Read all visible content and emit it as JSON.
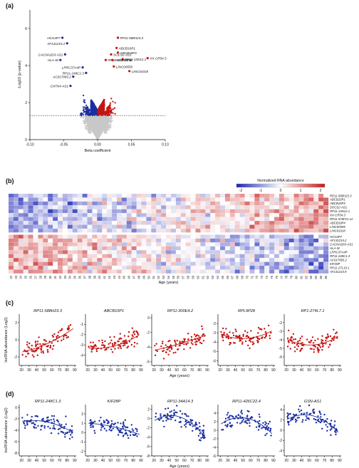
{
  "panel_labels": [
    "(a)",
    "(b)",
    "(c)",
    "(d)"
  ],
  "chart_data": [
    {
      "panel": "a",
      "type": "scatter",
      "xlabel": "Beta coefficient",
      "ylabel": "-Log10 (p-value)",
      "xlim": [
        -0.1,
        0.1
      ],
      "ylim": [
        0,
        7
      ],
      "xticks": [
        "-0.10",
        "-0.05",
        "0.00",
        "0.05",
        "0.10"
      ],
      "yticks": [
        "0",
        "2",
        "4",
        "6"
      ],
      "threshold_y": 1.3,
      "colors": {
        "negative": "#1a2fa0",
        "positive": "#c41414",
        "nonsignificant": "#c8c8c8"
      },
      "labeled_points": [
        {
          "label": "HCG4P7",
          "x": -0.052,
          "y": 5.5,
          "group": "negative"
        },
        {
          "label": "AF131215.2",
          "x": -0.045,
          "y": 5.2,
          "group": "negative"
        },
        {
          "label": "CACNA2D3-AS1",
          "x": -0.048,
          "y": 4.6,
          "group": "negative"
        },
        {
          "label": "HLA-W",
          "x": -0.055,
          "y": 4.3,
          "group": "negative"
        },
        {
          "label": "LRRC37A4P",
          "x": -0.022,
          "y": 3.9,
          "group": "negative"
        },
        {
          "label": "RP11-248C1.3",
          "x": -0.017,
          "y": 3.6,
          "group": "negative"
        },
        {
          "label": "AC017083.2",
          "x": -0.036,
          "y": 3.4,
          "group": "negative"
        },
        {
          "label": "CNTN4-AS1",
          "x": -0.04,
          "y": 2.9,
          "group": "negative"
        },
        {
          "label": "RP11-588H23.3",
          "x": 0.03,
          "y": 5.5,
          "group": "positive"
        },
        {
          "label": "ABCB10P1",
          "x": 0.028,
          "y": 4.95,
          "group": "positive"
        },
        {
          "label": "ABCB10P3",
          "x": 0.03,
          "y": 4.7,
          "group": "positive"
        },
        {
          "label": "SOCS2-AS1",
          "x": 0.02,
          "y": 4.6,
          "group": "positive"
        },
        {
          "label": "RP11-13N12.1",
          "x": 0.037,
          "y": 4.35,
          "group": "positive"
        },
        {
          "label": "XX-CR54.3",
          "x": 0.074,
          "y": 4.4,
          "group": "positive"
        },
        {
          "label": "RP11-576F21.12",
          "x": 0.012,
          "y": 4.3,
          "group": "positive"
        },
        {
          "label": "ABCB10P4",
          "x": 0.022,
          "y": 4.3,
          "group": "positive"
        },
        {
          "label": "LINC00595",
          "x": 0.024,
          "y": 3.95,
          "group": "positive"
        },
        {
          "label": "LINC01018",
          "x": 0.047,
          "y": 3.7,
          "group": "positive"
        }
      ]
    },
    {
      "panel": "b",
      "type": "heatmap",
      "legend_title": "Normalized RNA abundance",
      "legend_ticks": [
        "-2",
        "-1",
        "0",
        "1",
        "2"
      ],
      "xlabel": "Age (years)",
      "rows_top": [
        "RP11-588H23.3",
        "ABCB10P1",
        "ABCB10P3",
        "SOCS2-AS1",
        "RP11-13N12.1",
        "XX-CR54.3",
        "RP11-576F21.12",
        "ABCB10P4",
        "LINC00595",
        "LINC01018"
      ],
      "rows_bottom": [
        "HCG4P7",
        "AF131215.2",
        "CACNA2D3-AS1",
        "HLA-W",
        "LRRC37A4P",
        "RP11-248C1.3",
        "AC017083.2",
        "KIF28P",
        "RP11-27L19.1",
        "AF131215.9"
      ],
      "ages": [
        "22",
        "23",
        "24",
        "25",
        "26",
        "27",
        "28",
        "29",
        "30",
        "31",
        "32",
        "33",
        "34",
        "35",
        "36",
        "37",
        "38",
        "39",
        "40",
        "41",
        "42",
        "43",
        "44",
        "45",
        "46",
        "47",
        "48",
        "49",
        "50",
        "51",
        "52",
        "53",
        "54",
        "55",
        "56",
        "57",
        "58",
        "59",
        "60",
        "61",
        "62",
        "63",
        "64",
        "65",
        "66",
        "67",
        "68",
        "69",
        "70",
        "71",
        "72",
        "73",
        "74",
        "75",
        "76",
        "77",
        "78",
        "79",
        "80",
        "81",
        "82",
        "83",
        "84",
        "85",
        "86"
      ]
    },
    {
      "panel": "c",
      "type": "scatter",
      "ylabel": "lncRNA abundance (Log2)",
      "xlabel": "Age (years)",
      "xticks": [
        "20",
        "30",
        "40",
        "50",
        "60",
        "70",
        "80",
        "90"
      ],
      "color": "#c41414",
      "subplots": [
        {
          "title": "RP11-588H23.3",
          "ylim": [
            -3,
            3
          ],
          "yticks": [
            "-2",
            "0",
            "2"
          ],
          "trend": [
            [
              22,
              -1.4
            ],
            [
              55,
              -0.4
            ],
            [
              88,
              1.3
            ]
          ]
        },
        {
          "title": "ABCB10P1",
          "ylim": [
            -5,
            0
          ],
          "yticks": [
            "-4",
            "-3",
            "-2",
            "-1"
          ],
          "trend": [
            [
              22,
              -3.3
            ],
            [
              55,
              -3.1
            ],
            [
              88,
              -2.0
            ]
          ]
        },
        {
          "title": "RP11-300E4.2",
          "ylim": [
            -6.5,
            0.5
          ],
          "yticks": [
            "-6",
            "-4",
            "-2",
            "0"
          ],
          "trend": [
            [
              22,
              -4.4
            ],
            [
              55,
              -3.5
            ],
            [
              88,
              -2.4
            ]
          ]
        },
        {
          "title": "RPL9P28",
          "ylim": [
            -6.5,
            -1
          ],
          "yticks": [
            "-6",
            "-5",
            "-4",
            "-3",
            "-2"
          ],
          "trend": [
            [
              22,
              -3.2
            ],
            [
              55,
              -3.6
            ],
            [
              88,
              -2.8
            ]
          ]
        },
        {
          "title": "RP1-274L7.1",
          "ylim": [
            -7,
            -1
          ],
          "yticks": [
            "-6",
            "-5",
            "-4",
            "-3",
            "-2"
          ],
          "trend": [
            [
              22,
              -4.0
            ],
            [
              55,
              -4.6
            ],
            [
              88,
              -3.6
            ]
          ]
        }
      ]
    },
    {
      "panel": "d",
      "type": "scatter",
      "ylabel": "lncRNA abundance (Log2)",
      "xlabel": "Age (years)",
      "xticks": [
        "20",
        "30",
        "40",
        "50",
        "60",
        "70",
        "80",
        "90"
      ],
      "color": "#1a2fa0",
      "subplots": [
        {
          "title": "RP11-248C1.3",
          "ylim": [
            -8.5,
            0.5
          ],
          "yticks": [
            "-8",
            "-6",
            "-4",
            "-2",
            "0"
          ],
          "trend": [
            [
              22,
              -2.4
            ],
            [
              55,
              -2.6
            ],
            [
              88,
              -4.4
            ]
          ]
        },
        {
          "title": "KIF28P",
          "ylim": [
            -2.5,
            3
          ],
          "yticks": [
            "-2",
            "-1",
            "0",
            "1",
            "2"
          ],
          "trend": [
            [
              22,
              1.0
            ],
            [
              55,
              0.6
            ],
            [
              88,
              -0.2
            ]
          ]
        },
        {
          "title": "RP11-34A14.3",
          "ylim": [
            -8,
            3
          ],
          "yticks": [
            "-8",
            "-6",
            "-4",
            "-2",
            "0",
            "2"
          ],
          "trend": [
            [
              22,
              -0.3
            ],
            [
              55,
              0.3
            ],
            [
              88,
              -4.2
            ]
          ]
        },
        {
          "title": "RP11-426C22.4",
          "ylim": [
            -6,
            6
          ],
          "yticks": [
            "-6",
            "-4",
            "-2",
            "0",
            "2",
            "4"
          ],
          "trend": [
            [
              22,
              1.6
            ],
            [
              55,
              2.8
            ],
            [
              88,
              -0.8
            ]
          ]
        },
        {
          "title": "GSN-AS1",
          "ylim": [
            -5,
            5
          ],
          "yticks": [
            "-4",
            "-2",
            "0",
            "2",
            "4"
          ],
          "trend": [
            [
              22,
              2.2
            ],
            [
              55,
              2.8
            ],
            [
              88,
              -0.4
            ]
          ]
        }
      ]
    }
  ]
}
